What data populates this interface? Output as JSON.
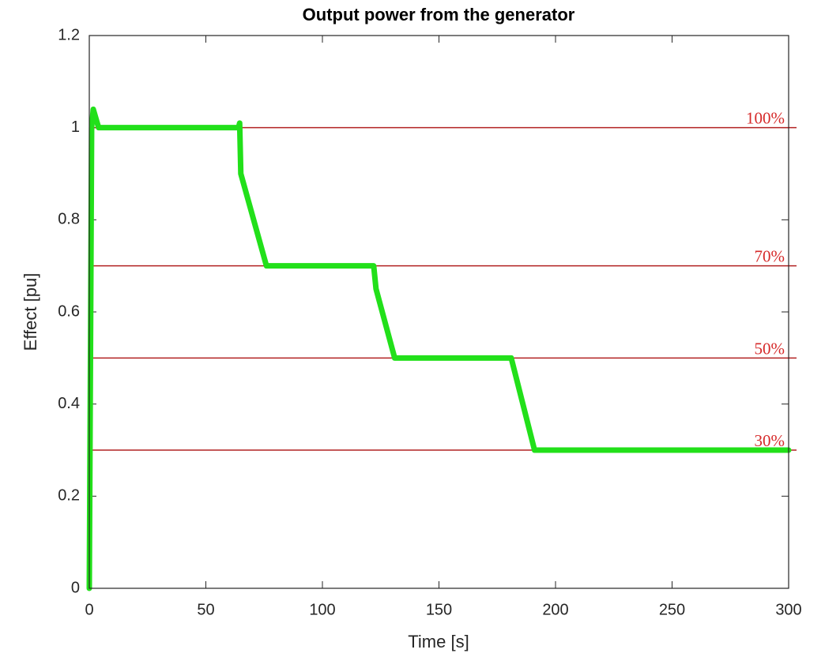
{
  "chart_data": {
    "type": "line",
    "title": "Output power from the generator",
    "xlabel": "Time [s]",
    "ylabel": "Effect [pu]",
    "x": [
      0,
      1,
      1.7,
      4,
      64,
      64.5,
      65,
      76,
      122,
      123,
      131,
      181,
      191,
      300
    ],
    "series": [
      {
        "color": "#22e01a",
        "values": [
          0,
          1.0,
          1.04,
          1.0,
          1.0,
          1.01,
          0.9,
          0.7,
          0.7,
          0.65,
          0.5,
          0.5,
          0.3,
          0.3
        ]
      }
    ],
    "xlim": [
      0,
      300
    ],
    "xticks": [
      0,
      50,
      100,
      150,
      200,
      250,
      300
    ],
    "ylim": [
      0,
      1.2
    ],
    "yticks": [
      0,
      0.2,
      0.4,
      0.6,
      0.8,
      1,
      1.2
    ],
    "reference_lines": {
      "color": "#b22222",
      "lines": [
        {
          "y": 1,
          "label": "100%"
        },
        {
          "y": 0.7,
          "label": "70%"
        },
        {
          "y": 0.5,
          "label": "50%"
        },
        {
          "y": 0.3,
          "label": "30%"
        }
      ]
    }
  }
}
